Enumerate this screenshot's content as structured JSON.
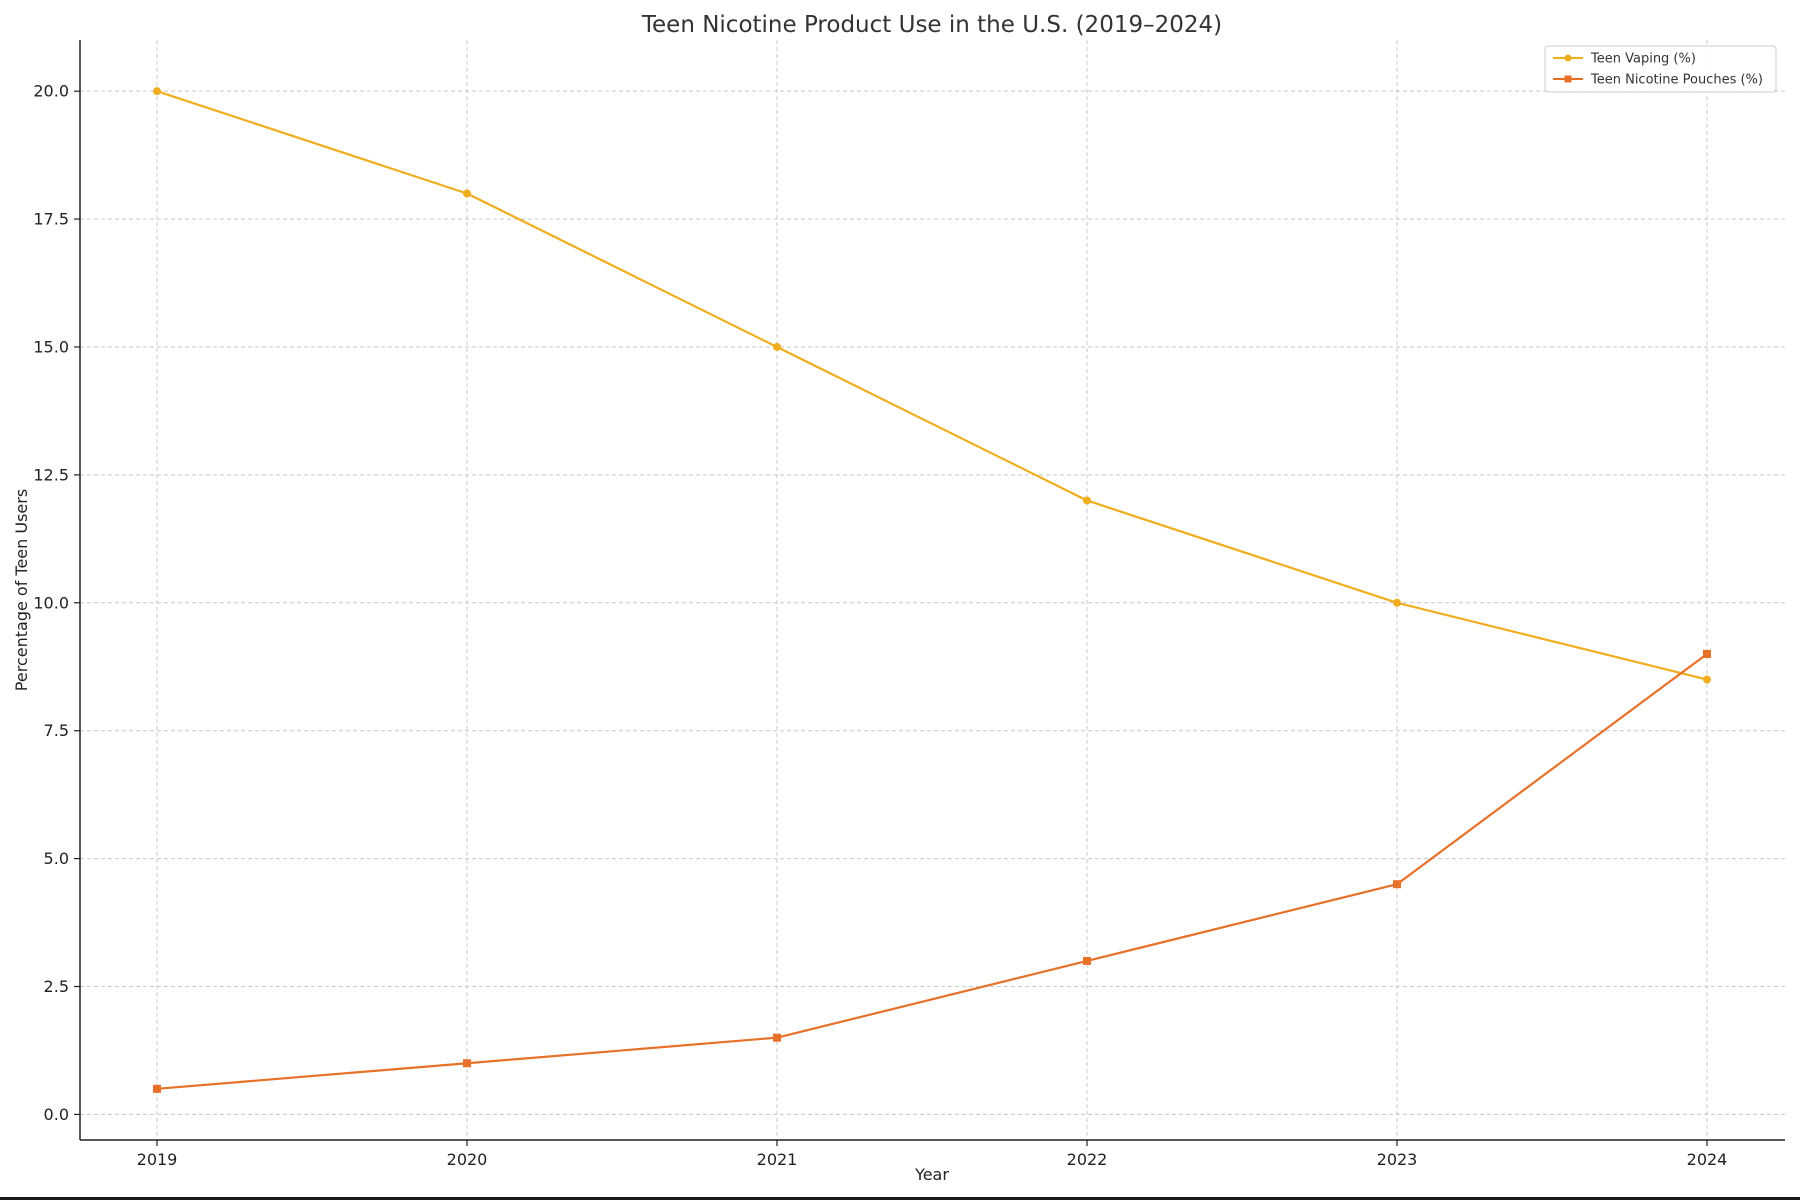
{
  "chart_data": {
    "type": "line",
    "title": "Teen Nicotine Product Use in the U.S. (2019–2024)",
    "xlabel": "Year",
    "ylabel": "Percentage of Teen Users",
    "x": [
      2019,
      2020,
      2021,
      2022,
      2023,
      2024
    ],
    "x_tick_labels": [
      "2019",
      "2020",
      "2021",
      "2022",
      "2023",
      "2024"
    ],
    "ylim": [
      -0.5,
      21.0
    ],
    "y_ticks": [
      0.0,
      2.5,
      5.0,
      7.5,
      10.0,
      12.5,
      15.0,
      17.5,
      20.0
    ],
    "y_tick_labels": [
      "0.0",
      "2.5",
      "5.0",
      "7.5",
      "10.0",
      "12.5",
      "15.0",
      "17.5",
      "20.0"
    ],
    "grid": true,
    "legend_position": "top-right",
    "series": [
      {
        "name": "Teen Vaping (%)",
        "values": [
          20.0,
          18.0,
          15.0,
          12.0,
          10.0,
          8.5
        ],
        "color": "#f0ad1e",
        "marker": "circle"
      },
      {
        "name": "Teen Nicotine Pouches (%)",
        "values": [
          0.5,
          1.0,
          1.5,
          3.0,
          4.5,
          9.0
        ],
        "color": "#e8712a",
        "marker": "square"
      }
    ]
  }
}
